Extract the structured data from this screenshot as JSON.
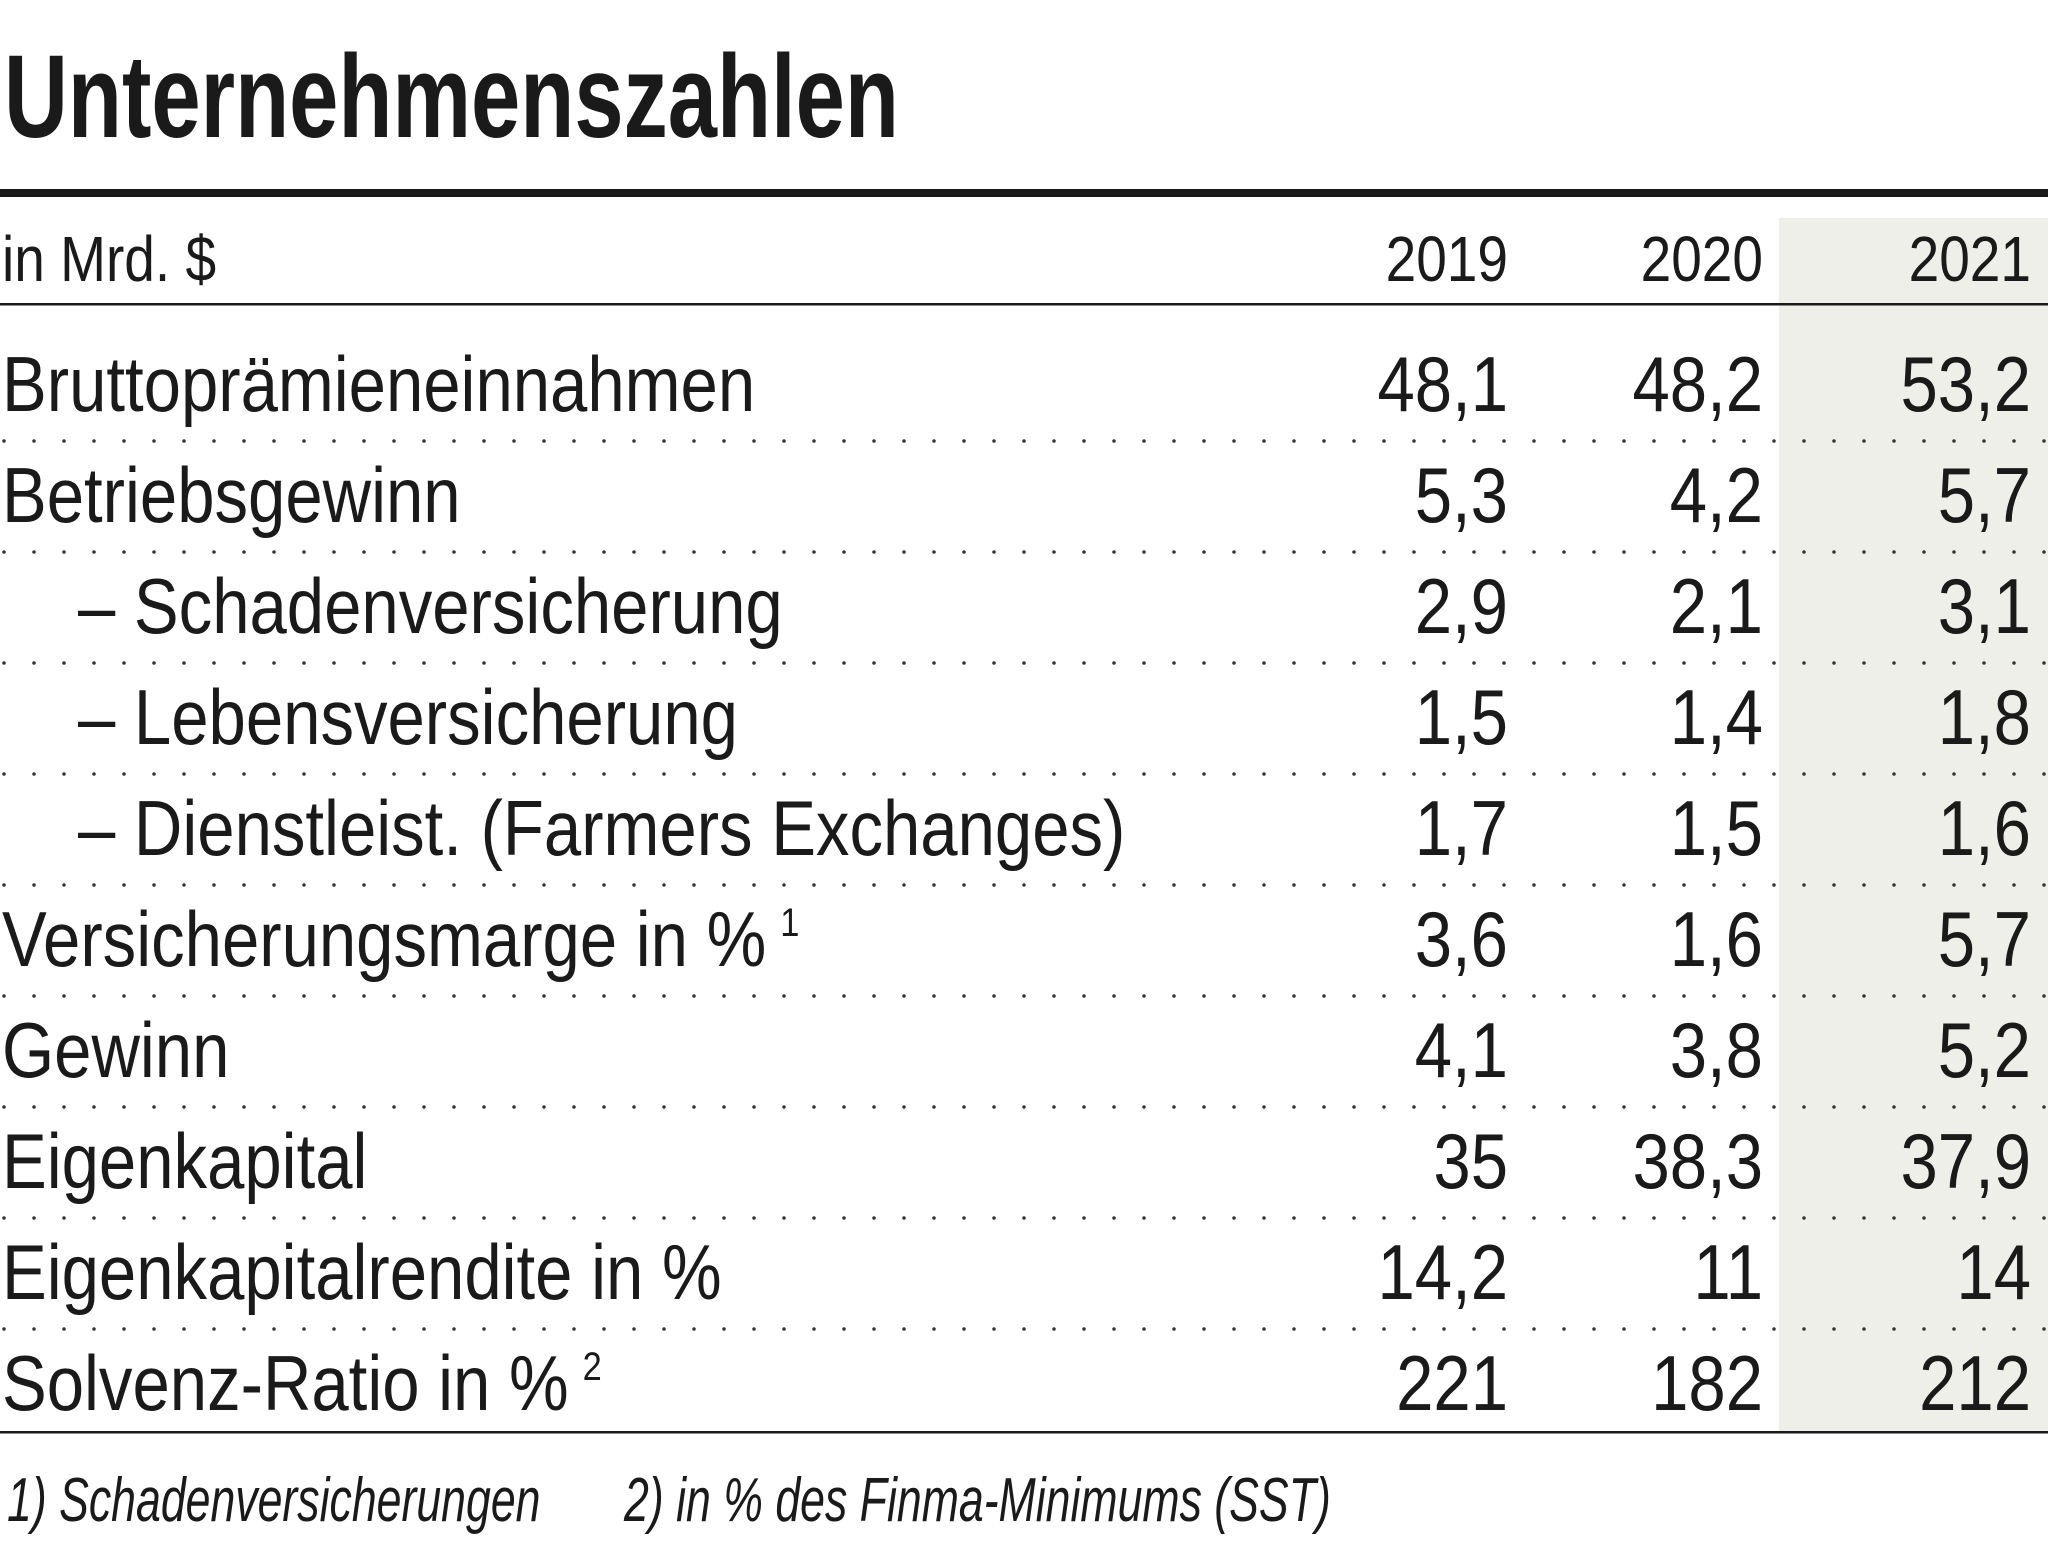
{
  "title": "Unternehmenszahlen",
  "table": {
    "header": [
      "in Mrd. $",
      "2019",
      "2020",
      "2021"
    ],
    "highlight_column": 3,
    "rows": [
      {
        "label": "Bruttoprämieneinnahmen",
        "values": [
          "48,1",
          "48,2",
          "53,2"
        ]
      },
      {
        "label": "Betriebsgewinn",
        "values": [
          "5,3",
          "4,2",
          "5,7"
        ]
      },
      {
        "label": "– Schadenversicherung",
        "indent": true,
        "values": [
          "2,9",
          "2,1",
          "3,1"
        ]
      },
      {
        "label": "– Lebensversicherung",
        "indent": true,
        "values": [
          "1,5",
          "1,4",
          "1,8"
        ]
      },
      {
        "label": "– Dienstleist. (Farmers Exchanges)",
        "indent": true,
        "values": [
          "1,7",
          "1,5",
          "1,6"
        ]
      },
      {
        "label": "Versicherungsmarge in %",
        "note": "1",
        "values": [
          "3,6",
          "1,6",
          "5,7"
        ]
      },
      {
        "label": "Gewinn",
        "values": [
          "4,1",
          "3,8",
          "5,2"
        ]
      },
      {
        "label": "Eigenkapital",
        "values": [
          "35",
          "38,3",
          "37,9"
        ]
      },
      {
        "label": "Eigenkapitalrendite in %",
        "values": [
          "14,2",
          "11",
          "14"
        ]
      },
      {
        "label": "Solvenz-Ratio in %",
        "note": "2",
        "values": [
          "221",
          "182",
          "212"
        ]
      }
    ]
  },
  "footnotes": [
    "1) Schadenversicherungen",
    "2) in % des Finma-Minimums (SST)"
  ]
}
